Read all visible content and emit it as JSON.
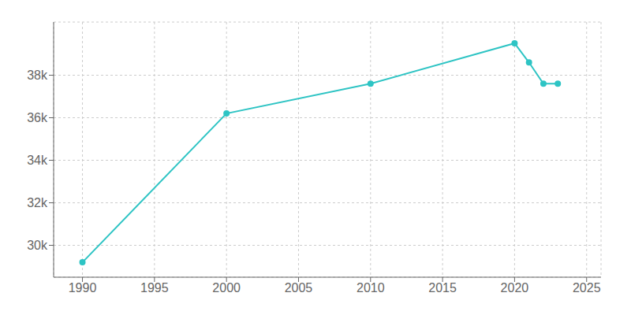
{
  "chart_data": {
    "type": "line",
    "x": [
      1990,
      2000,
      2010,
      2020,
      2021,
      2022,
      2023
    ],
    "values": [
      29200,
      36200,
      37600,
      39500,
      38600,
      37600,
      37600
    ],
    "color": "#2ec4c4",
    "marker": "circle",
    "xlim": [
      1988,
      2026
    ],
    "ylim": [
      28500,
      40500
    ],
    "xticks": [
      1990,
      1995,
      2000,
      2005,
      2010,
      2015,
      2020,
      2025
    ],
    "yticks": [
      {
        "value": 30000,
        "label": "30k"
      },
      {
        "value": 32000,
        "label": "32k"
      },
      {
        "value": 34000,
        "label": "34k"
      },
      {
        "value": 36000,
        "label": "36k"
      },
      {
        "value": 38000,
        "label": "38k"
      }
    ],
    "grid": true
  }
}
